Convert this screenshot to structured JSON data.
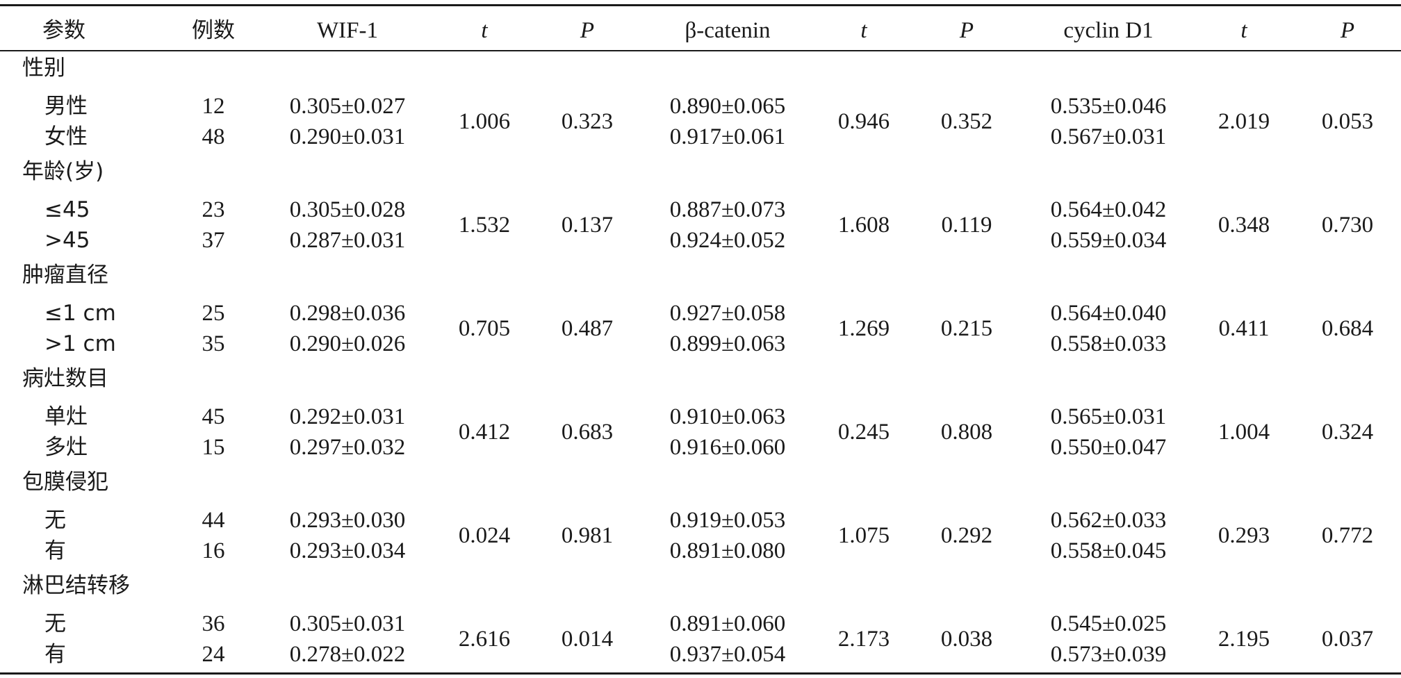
{
  "table": {
    "headers": {
      "param": "参数",
      "cases": "例数",
      "wif1": "WIF-1",
      "t1": "t",
      "p1": "P",
      "bcat": "β-catenin",
      "t2": "t",
      "p2": "P",
      "cyclin": "cyclin D1",
      "t3": "t",
      "p3": "P"
    },
    "groups": [
      {
        "label": "性别",
        "rows": [
          {
            "sub": "男性",
            "n": "12",
            "wif1": "0.305±0.027",
            "bcat": "0.890±0.065",
            "cyclin": "0.535±0.046"
          },
          {
            "sub": "女性",
            "n": "48",
            "wif1": "0.290±0.031",
            "bcat": "0.917±0.061",
            "cyclin": "0.567±0.031"
          }
        ],
        "t1": "1.006",
        "p1": "0.323",
        "t2": "0.946",
        "p2": "0.352",
        "t3": "2.019",
        "p3": "0.053"
      },
      {
        "label": "年龄(岁)",
        "rows": [
          {
            "sub": "≤45",
            "n": "23",
            "wif1": "0.305±0.028",
            "bcat": "0.887±0.073",
            "cyclin": "0.564±0.042"
          },
          {
            "sub": ">45",
            "n": "37",
            "wif1": "0.287±0.031",
            "bcat": "0.924±0.052",
            "cyclin": "0.559±0.034"
          }
        ],
        "t1": "1.532",
        "p1": "0.137",
        "t2": "1.608",
        "p2": "0.119",
        "t3": "0.348",
        "p3": "0.730"
      },
      {
        "label": "肿瘤直径",
        "rows": [
          {
            "sub": "≤1 cm",
            "n": "25",
            "wif1": "0.298±0.036",
            "bcat": "0.927±0.058",
            "cyclin": "0.564±0.040"
          },
          {
            "sub": ">1 cm",
            "n": "35",
            "wif1": "0.290±0.026",
            "bcat": "0.899±0.063",
            "cyclin": "0.558±0.033"
          }
        ],
        "t1": "0.705",
        "p1": "0.487",
        "t2": "1.269",
        "p2": "0.215",
        "t3": "0.411",
        "p3": "0.684"
      },
      {
        "label": "病灶数目",
        "rows": [
          {
            "sub": "单灶",
            "n": "45",
            "wif1": "0.292±0.031",
            "bcat": "0.910±0.063",
            "cyclin": "0.565±0.031"
          },
          {
            "sub": "多灶",
            "n": "15",
            "wif1": "0.297±0.032",
            "bcat": "0.916±0.060",
            "cyclin": "0.550±0.047"
          }
        ],
        "t1": "0.412",
        "p1": "0.683",
        "t2": "0.245",
        "p2": "0.808",
        "t3": "1.004",
        "p3": "0.324"
      },
      {
        "label": "包膜侵犯",
        "rows": [
          {
            "sub": "无",
            "n": "44",
            "wif1": "0.293±0.030",
            "bcat": "0.919±0.053",
            "cyclin": "0.562±0.033"
          },
          {
            "sub": "有",
            "n": "16",
            "wif1": "0.293±0.034",
            "bcat": "0.891±0.080",
            "cyclin": "0.558±0.045"
          }
        ],
        "t1": "0.024",
        "p1": "0.981",
        "t2": "1.075",
        "p2": "0.292",
        "t3": "0.293",
        "p3": "0.772"
      },
      {
        "label": "淋巴结转移",
        "rows": [
          {
            "sub": "无",
            "n": "36",
            "wif1": "0.305±0.031",
            "bcat": "0.891±0.060",
            "cyclin": "0.545±0.025"
          },
          {
            "sub": "有",
            "n": "24",
            "wif1": "0.278±0.022",
            "bcat": "0.937±0.054",
            "cyclin": "0.573±0.039"
          }
        ],
        "t1": "2.616",
        "p1": "0.014",
        "t2": "2.173",
        "p2": "0.038",
        "t3": "2.195",
        "p3": "0.037"
      }
    ]
  }
}
